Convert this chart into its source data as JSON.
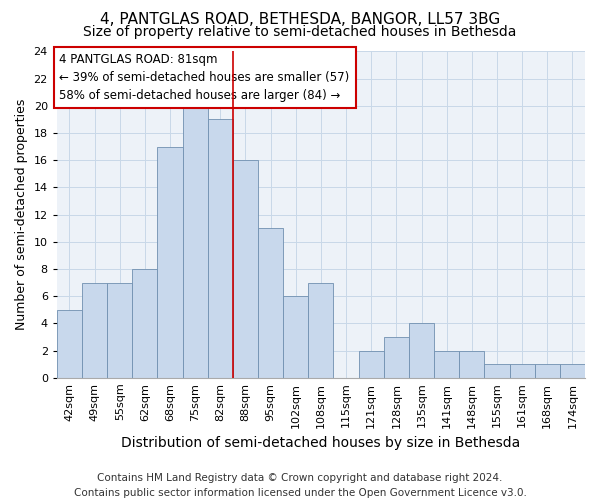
{
  "title1": "4, PANTGLAS ROAD, BETHESDA, BANGOR, LL57 3BG",
  "title2": "Size of property relative to semi-detached houses in Bethesda",
  "xlabel": "Distribution of semi-detached houses by size in Bethesda",
  "ylabel": "Number of semi-detached properties",
  "categories": [
    "42sqm",
    "49sqm",
    "55sqm",
    "62sqm",
    "68sqm",
    "75sqm",
    "82sqm",
    "88sqm",
    "95sqm",
    "102sqm",
    "108sqm",
    "115sqm",
    "121sqm",
    "128sqm",
    "135sqm",
    "141sqm",
    "148sqm",
    "155sqm",
    "161sqm",
    "168sqm",
    "174sqm"
  ],
  "values": [
    5,
    7,
    7,
    8,
    17,
    20,
    19,
    16,
    11,
    6,
    7,
    0,
    2,
    3,
    4,
    2,
    2,
    1,
    1,
    1,
    1
  ],
  "bar_color": "#c8d8ec",
  "bar_edge_color": "#7090b0",
  "redline_x": 6.5,
  "annotation_text": "4 PANTGLAS ROAD: 81sqm\n← 39% of semi-detached houses are smaller (57)\n58% of semi-detached houses are larger (84) →",
  "annotation_box_color": "#ffffff",
  "annotation_box_edge": "#cc0000",
  "ylim": [
    0,
    24
  ],
  "yticks": [
    0,
    2,
    4,
    6,
    8,
    10,
    12,
    14,
    16,
    18,
    20,
    22,
    24
  ],
  "grid_color": "#c8d8e8",
  "background_color": "#edf2f8",
  "footer": "Contains HM Land Registry data © Crown copyright and database right 2024.\nContains public sector information licensed under the Open Government Licence v3.0.",
  "title1_fontsize": 11,
  "title2_fontsize": 10,
  "xlabel_fontsize": 10,
  "ylabel_fontsize": 9,
  "tick_fontsize": 8,
  "annotation_fontsize": 8.5,
  "footer_fontsize": 7.5
}
